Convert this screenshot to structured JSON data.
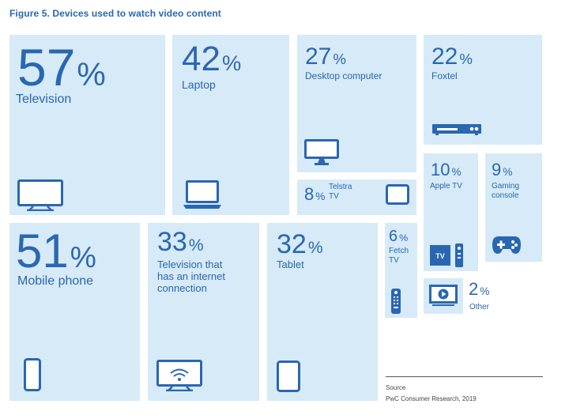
{
  "title": "Figure 5. Devices used to watch video content",
  "pct_symbol": "%",
  "source": {
    "label": "Source",
    "text": "PwC Consumer Research, 2019"
  },
  "colors": {
    "tile": "#d7eaf7",
    "accent": "#2a67b1"
  },
  "chart_data": {
    "type": "treemap",
    "title": "Figure 5. Devices used to watch video content",
    "unit": "%",
    "items": [
      {
        "label": "Television",
        "value": 57,
        "icon": "television-icon"
      },
      {
        "label": "Laptop",
        "value": 42,
        "icon": "laptop-icon"
      },
      {
        "label": "Desktop computer",
        "value": 27,
        "icon": "desktop-computer-icon"
      },
      {
        "label": "Foxtel",
        "value": 22,
        "icon": "set-top-box-icon"
      },
      {
        "label": "Telstra TV",
        "value": 8,
        "icon": "tablet-icon"
      },
      {
        "label": "Apple TV",
        "value": 10,
        "icon": "apple-tv-icon"
      },
      {
        "label": "Gaming console",
        "value": 9,
        "icon": "gamepad-icon"
      },
      {
        "label": "Mobile phone",
        "value": 51,
        "icon": "mobile-phone-icon"
      },
      {
        "label": "Television that has an internet connection",
        "value": 33,
        "icon": "smart-tv-icon"
      },
      {
        "label": "Tablet",
        "value": 32,
        "icon": "tablet-icon"
      },
      {
        "label": "Fetch TV",
        "value": 6,
        "icon": "remote-control-icon"
      },
      {
        "label": "Other",
        "value": 2,
        "icon": "play-screen-icon"
      }
    ]
  }
}
